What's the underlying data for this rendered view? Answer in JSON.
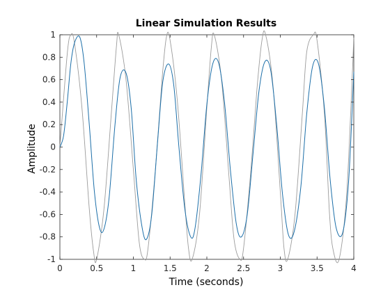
{
  "chart_data": {
    "type": "line",
    "title": "Linear Simulation Results",
    "xlabel": "Time (seconds)",
    "ylabel": "Amplitude",
    "xlim": [
      0,
      4
    ],
    "ylim": [
      -1,
      1
    ],
    "xticks": [
      "0",
      "0.5",
      "1",
      "1.5",
      "2",
      "2.5",
      "3",
      "3.5",
      "4"
    ],
    "yticks": [
      "-1",
      "-0.8",
      "-0.6",
      "-0.4",
      "-0.2",
      "0",
      "0.2",
      "0.4",
      "0.6",
      "0.8",
      "1"
    ],
    "grid": false,
    "series": [
      {
        "role": "input",
        "color": "#9b9b9b",
        "x": [
          0,
          0.1,
          0.15,
          0.2,
          0.3,
          0.4,
          0.46,
          0.5,
          0.6,
          0.7,
          0.77,
          0.8,
          0.9,
          1.0,
          1.08,
          1.15,
          1.2,
          1.3,
          1.39,
          1.45,
          1.5,
          1.6,
          1.7,
          1.75,
          1.8,
          1.9,
          2.0,
          2.06,
          2.1,
          2.2,
          2.3,
          2.37,
          2.45,
          2.5,
          2.6,
          2.68,
          2.75,
          2.8,
          2.9,
          3.0,
          3.05,
          3.1,
          3.2,
          3.3,
          3.36,
          3.45,
          3.5,
          3.6,
          3.67,
          3.72,
          3.8,
          3.9,
          3.98,
          4.0
        ],
        "y": [
          0,
          0.83,
          1.0,
          0.92,
          0.35,
          -0.55,
          -0.94,
          -1.0,
          -0.55,
          0.3,
          0.9,
          1.0,
          0.6,
          -0.2,
          -0.85,
          -1.0,
          -0.9,
          -0.2,
          0.6,
          0.98,
          0.95,
          0.4,
          -0.5,
          -0.9,
          -1.0,
          -0.6,
          0.35,
          0.88,
          1.0,
          0.6,
          -0.25,
          -0.82,
          -1.0,
          -0.9,
          -0.2,
          0.5,
          0.95,
          1.0,
          0.55,
          -0.4,
          -0.9,
          -1.0,
          -0.6,
          0.3,
          0.85,
          1.0,
          0.95,
          0.3,
          -0.6,
          -0.92,
          -1.0,
          -0.45,
          0.65,
          1.0
        ]
      },
      {
        "role": "response",
        "color": "#1b6ea8",
        "x": [
          0,
          0.05,
          0.1,
          0.15,
          0.2,
          0.27,
          0.33,
          0.4,
          0.47,
          0.54,
          0.6,
          0.67,
          0.75,
          0.82,
          0.9,
          0.97,
          1.04,
          1.12,
          1.18,
          1.25,
          1.33,
          1.4,
          1.48,
          1.55,
          1.62,
          1.7,
          1.78,
          1.84,
          1.92,
          2.0,
          2.08,
          2.16,
          2.24,
          2.32,
          2.4,
          2.47,
          2.55,
          2.63,
          2.71,
          2.79,
          2.87,
          2.95,
          3.03,
          3.11,
          3.19,
          3.28,
          3.36,
          3.44,
          3.52,
          3.6,
          3.68,
          3.76,
          3.85,
          3.93,
          4.0
        ],
        "y": [
          0,
          0.1,
          0.4,
          0.75,
          0.93,
          0.98,
          0.75,
          0.2,
          -0.4,
          -0.72,
          -0.73,
          -0.45,
          0.2,
          0.62,
          0.66,
          0.35,
          -0.3,
          -0.72,
          -0.82,
          -0.6,
          0.05,
          0.58,
          0.74,
          0.55,
          0.0,
          -0.55,
          -0.8,
          -0.72,
          -0.25,
          0.38,
          0.74,
          0.75,
          0.4,
          -0.2,
          -0.68,
          -0.8,
          -0.6,
          -0.05,
          0.5,
          0.76,
          0.68,
          0.2,
          -0.42,
          -0.78,
          -0.75,
          -0.35,
          0.3,
          0.72,
          0.74,
          0.35,
          -0.3,
          -0.72,
          -0.76,
          -0.3,
          0.67
        ]
      }
    ]
  }
}
